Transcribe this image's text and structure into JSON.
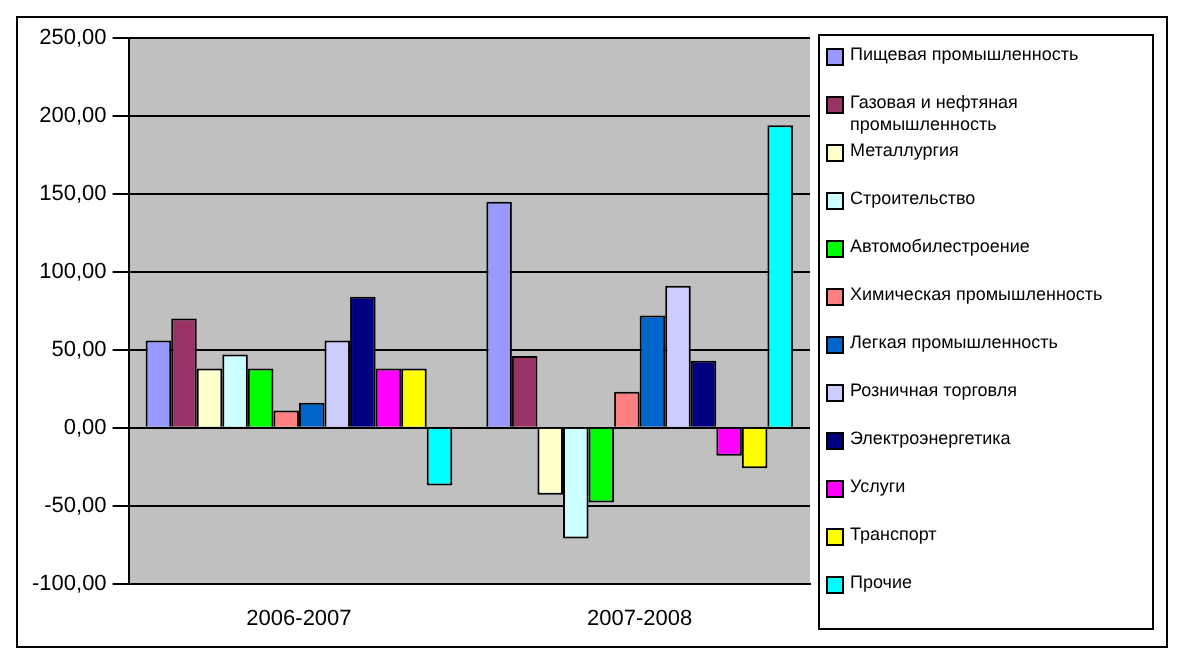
{
  "chart_data": {
    "type": "bar",
    "categories": [
      "2006-2007",
      "2007-2008"
    ],
    "series": [
      {
        "name": "Пищевая промышленность",
        "color": "#9999ff",
        "values": [
          56,
          145
        ]
      },
      {
        "name": "Газовая и нефтяная промышленность",
        "color": "#993366",
        "values": [
          70,
          46
        ]
      },
      {
        "name": "Металлургия",
        "color": "#ffffcc",
        "values": [
          38,
          -43
        ]
      },
      {
        "name": "Строительство",
        "color": "#ccffff",
        "values": [
          47,
          -71
        ]
      },
      {
        "name": "Автомобилестроение",
        "color": "#00ff00",
        "values": [
          38,
          -48
        ]
      },
      {
        "name": "Химическая промышленность",
        "color": "#ff8080",
        "values": [
          11,
          23
        ]
      },
      {
        "name": "Легкая промышленность",
        "color": "#0066cc",
        "values": [
          16,
          72
        ]
      },
      {
        "name": "Розничная торговля",
        "color": "#ccccff",
        "values": [
          56,
          91
        ]
      },
      {
        "name": "Электроэнергетика",
        "color": "#000080",
        "values": [
          84,
          43
        ]
      },
      {
        "name": "Услуги",
        "color": "#ff00ff",
        "values": [
          38,
          -18
        ]
      },
      {
        "name": "Транспорт",
        "color": "#ffff00",
        "values": [
          38,
          -26
        ]
      },
      {
        "name": "Прочие",
        "color": "#00ffff",
        "values": [
          -37,
          194
        ]
      }
    ],
    "ylim": [
      -100,
      250
    ],
    "yticks": [
      {
        "value": -100,
        "label": "-100,00"
      },
      {
        "value": -50,
        "label": "-50,00"
      },
      {
        "value": 0,
        "label": "0,00"
      },
      {
        "value": 50,
        "label": "50,00"
      },
      {
        "value": 100,
        "label": "100,00"
      },
      {
        "value": 150,
        "label": "150,00"
      },
      {
        "value": 200,
        "label": "200,00"
      },
      {
        "value": 250,
        "label": "250,00"
      }
    ],
    "grid": "y",
    "legend": "right"
  }
}
